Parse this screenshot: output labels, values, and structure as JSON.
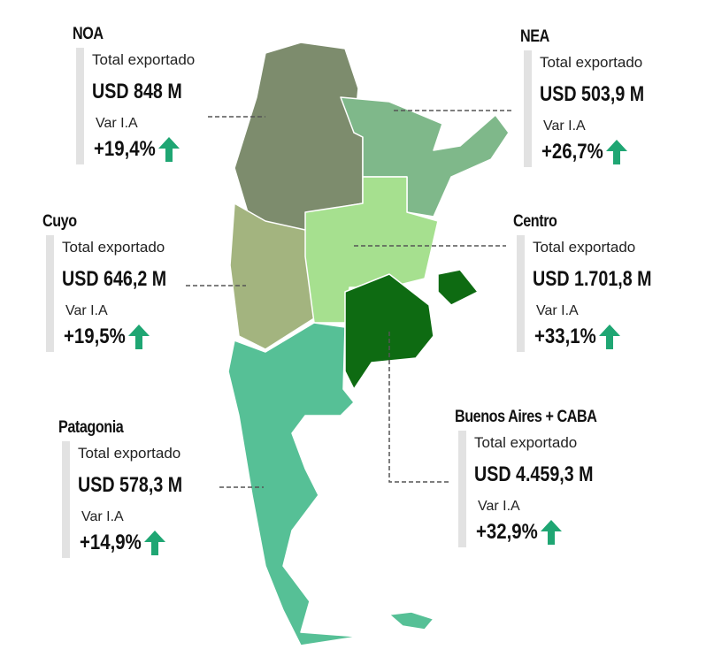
{
  "regions": [
    {
      "name": "NOA",
      "total_label": "Total exportado",
      "value": "USD 848 M",
      "var_label": "Var I.A",
      "var": "+19,4%"
    },
    {
      "name": "NEA",
      "total_label": "Total exportado",
      "value": "USD 503,9 M",
      "var_label": "Var I.A",
      "var": "+26,7%"
    },
    {
      "name": "Cuyo",
      "total_label": "Total exportado",
      "value": "USD  646,2 M",
      "var_label": "Var I.A",
      "var": "+19,5%"
    },
    {
      "name": "Centro",
      "total_label": "Total exportado",
      "value": "USD 1.701,8 M",
      "var_label": "Var I.A",
      "var": "+33,1%"
    },
    {
      "name": "Patagonia",
      "total_label": "Total exportado",
      "value": "USD 578,3 M",
      "var_label": "Var I.A",
      "var": "+14,9%"
    },
    {
      "name": "Buenos Aires + CABA",
      "total_label": "Total exportado",
      "value": "USD 4.459,3 M",
      "var_label": "Var I.A",
      "var": "+32,9%"
    }
  ]
}
